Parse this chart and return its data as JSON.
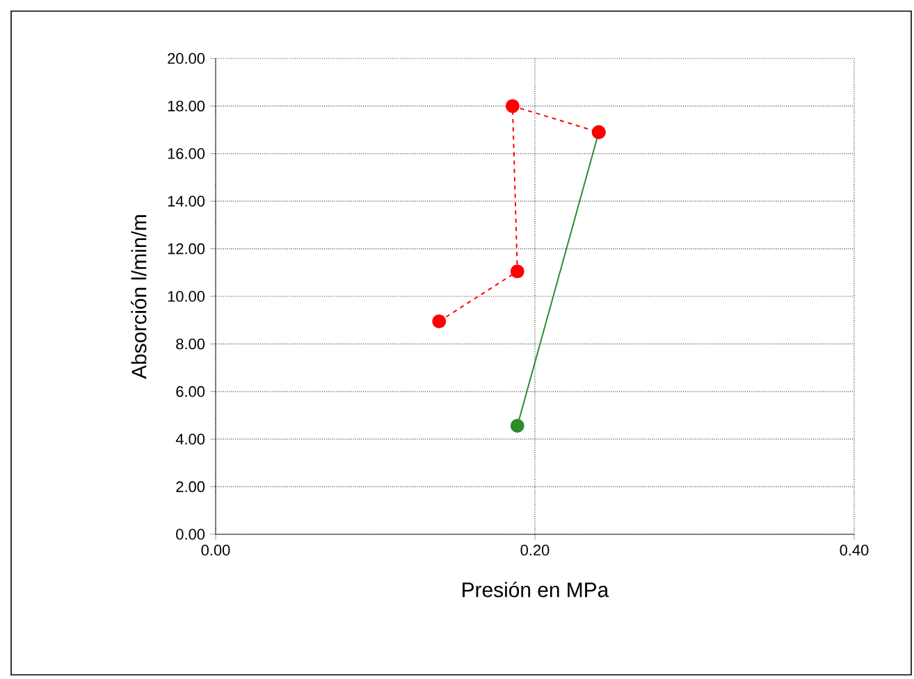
{
  "chart_data": {
    "type": "line",
    "xlabel": "Presión en MPa",
    "ylabel": "Absorción l/min/m",
    "xlim": [
      0,
      0.4
    ],
    "xticks": [
      {
        "value": 0,
        "label": "0.00"
      },
      {
        "value": 0.2,
        "label": "0.20"
      },
      {
        "value": 0.4,
        "label": "0.40"
      }
    ],
    "ylim": [
      0,
      20
    ],
    "yticks": [
      {
        "value": 0,
        "label": "0.00"
      },
      {
        "value": 2,
        "label": "2.00"
      },
      {
        "value": 4,
        "label": "4.00"
      },
      {
        "value": 6,
        "label": "6.00"
      },
      {
        "value": 8,
        "label": "8.00"
      },
      {
        "value": 10,
        "label": "10.00"
      },
      {
        "value": 12,
        "label": "12.00"
      },
      {
        "value": 14,
        "label": "14.00"
      },
      {
        "value": 16,
        "label": "16.00"
      },
      {
        "value": 18,
        "label": "18.00"
      },
      {
        "value": 20,
        "label": "20.00"
      }
    ],
    "grid": true,
    "marker": "circle",
    "series": [
      {
        "color": "#ff0000",
        "line_style": "dashed",
        "x": [
          0.14,
          0.189,
          0.186,
          0.24
        ],
        "values": [
          8.95,
          11.05,
          18.0,
          16.9
        ]
      },
      {
        "color": "#2e8b2e",
        "line_style": "solid",
        "x": [
          0.189,
          0.24
        ],
        "values": [
          4.56,
          16.9
        ]
      }
    ]
  }
}
